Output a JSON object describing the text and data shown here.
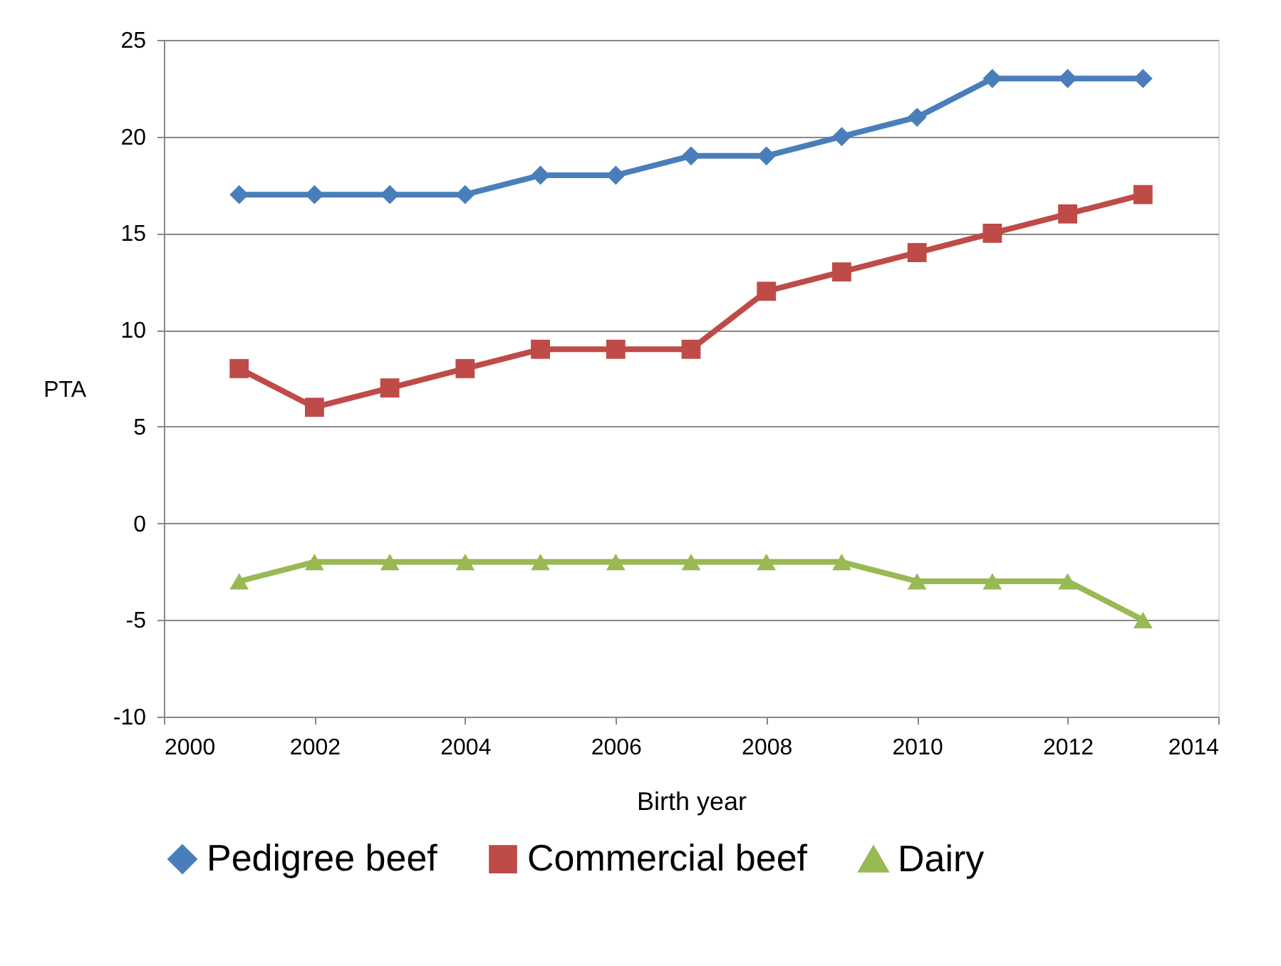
{
  "chart_data": {
    "type": "line",
    "xlabel": "Birth year",
    "ylabel": "PTA",
    "x": [
      2001,
      2002,
      2003,
      2004,
      2005,
      2006,
      2007,
      2008,
      2009,
      2010,
      2011,
      2012,
      2013
    ],
    "series": [
      {
        "name": "Pedigree beef",
        "color": "#4a7ebb",
        "marker": "diamond",
        "values": [
          17,
          17,
          17,
          17,
          18,
          18,
          19,
          19,
          20,
          21,
          23,
          23,
          23
        ]
      },
      {
        "name": "Commercial beef",
        "color": "#be4b48",
        "marker": "square",
        "values": [
          8,
          6,
          7,
          8,
          9,
          9,
          9,
          12,
          13,
          14,
          15,
          16,
          17
        ]
      },
      {
        "name": "Dairy",
        "color": "#98b954",
        "marker": "triangle",
        "values": [
          -3,
          -2,
          -2,
          -2,
          -2,
          -2,
          -2,
          -2,
          -2,
          -3,
          -3,
          -3,
          -5
        ]
      }
    ],
    "xlim": [
      2000,
      2014
    ],
    "xticks": [
      2000,
      2002,
      2004,
      2006,
      2008,
      2010,
      2012,
      2014
    ],
    "ylim": [
      -10,
      25
    ],
    "yticks": [
      -10,
      -5,
      0,
      5,
      10,
      15,
      20,
      25
    ],
    "grid": "y",
    "legend": "bottom",
    "line_style": "solid"
  }
}
